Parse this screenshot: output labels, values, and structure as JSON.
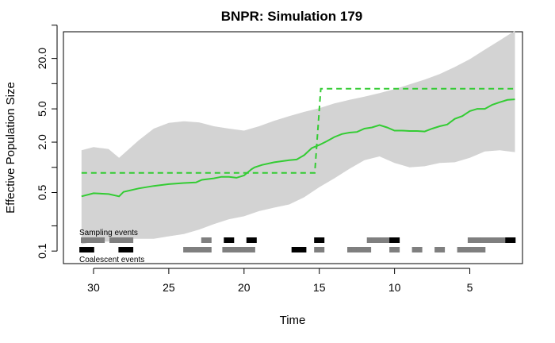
{
  "chart_data": {
    "type": "line",
    "title": "BNPR: Simulation 179",
    "xlabel": "Time",
    "ylabel": "Effective Population Size",
    "x_reversed": true,
    "xlim": [
      32,
      1.5
    ],
    "ylog": true,
    "ylim_log10": [
      -1.15,
      1.62
    ],
    "x_ticks": [
      30,
      25,
      20,
      15,
      10,
      5
    ],
    "x_tick_labels": [
      "30",
      "25",
      "20",
      "15",
      "10",
      "5"
    ],
    "y_ticks": [
      0.1,
      0.5,
      2.0,
      5.0,
      20.0
    ],
    "y_tick_labels": [
      "0.1",
      "0.5",
      "2.0",
      "5.0",
      "20.0"
    ],
    "y_minor_ticks": [
      0.2,
      1.0,
      10.0,
      50.0
    ],
    "colors": {
      "estimate": "#33cc33",
      "truth": "#33cc33",
      "band": "#d3d3d3",
      "sampling_event": "#7f7f7f",
      "coalescent_event": "#000000"
    },
    "series": [
      {
        "style": "solid",
        "role": "posterior-median",
        "x": [
          30.8,
          30.0,
          29.0,
          28.3,
          28.0,
          27.0,
          26.0,
          25.0,
          24.0,
          23.2,
          22.8,
          22.0,
          21.5,
          21.0,
          20.5,
          20.0,
          19.5,
          19.3,
          18.8,
          18.0,
          17.0,
          16.5,
          16.0,
          15.5,
          15.0,
          14.5,
          14.0,
          13.5,
          13.0,
          12.5,
          12.0,
          11.5,
          11.0,
          10.5,
          10.0,
          9.5,
          9.0,
          8.5,
          8.0,
          7.5,
          7.0,
          6.5,
          6.0,
          5.5,
          5.0,
          4.5,
          4.0,
          3.5,
          3.0,
          2.5,
          2.0
        ],
        "values": [
          0.45,
          0.49,
          0.48,
          0.45,
          0.51,
          0.56,
          0.6,
          0.63,
          0.65,
          0.66,
          0.71,
          0.74,
          0.77,
          0.77,
          0.75,
          0.8,
          0.95,
          1.0,
          1.07,
          1.15,
          1.22,
          1.24,
          1.4,
          1.7,
          1.85,
          2.05,
          2.3,
          2.5,
          2.6,
          2.65,
          2.9,
          3.0,
          3.2,
          3.0,
          2.75,
          2.75,
          2.72,
          2.72,
          2.68,
          2.9,
          3.1,
          3.25,
          3.8,
          4.1,
          4.7,
          5.0,
          5.0,
          5.6,
          6.0,
          6.4,
          6.5
        ]
      },
      {
        "style": "dashed",
        "role": "true-trajectory",
        "x": [
          30.8,
          15.3,
          14.9,
          2.0
        ],
        "values": [
          0.86,
          0.86,
          8.7,
          8.7
        ]
      }
    ],
    "band": {
      "role": "credible-interval",
      "x": [
        30.8,
        30.0,
        29.0,
        28.3,
        27.0,
        26.0,
        25.0,
        24.0,
        23.0,
        22.0,
        21.0,
        20.0,
        19.0,
        18.0,
        17.0,
        16.0,
        15.0,
        14.0,
        13.0,
        12.0,
        11.0,
        10.0,
        9.0,
        8.0,
        7.0,
        6.0,
        5.0,
        4.0,
        3.0,
        2.0
      ],
      "upper": [
        1.6,
        1.75,
        1.65,
        1.3,
        2.1,
        2.9,
        3.4,
        3.55,
        3.45,
        3.1,
        2.9,
        2.75,
        3.1,
        3.6,
        4.1,
        4.6,
        5.1,
        5.8,
        6.4,
        7.0,
        7.7,
        8.6,
        9.8,
        11.2,
        13.0,
        15.8,
        19.6,
        25.5,
        33.0,
        43.0
      ],
      "lower": [
        0.12,
        0.13,
        0.13,
        0.14,
        0.14,
        0.14,
        0.15,
        0.16,
        0.18,
        0.21,
        0.24,
        0.26,
        0.3,
        0.33,
        0.36,
        0.44,
        0.58,
        0.74,
        0.96,
        1.22,
        1.35,
        1.13,
        1.0,
        1.03,
        1.13,
        1.15,
        1.3,
        1.55,
        1.6,
        1.52
      ]
    },
    "sampling_events_label": "Sampling events",
    "coalescent_events_label": "Coalescent events",
    "sampling_events": {
      "gray": [
        30.5,
        30.2,
        29.9,
        29.6,
        28.6,
        28.3,
        28.0,
        27.7,
        22.5,
        11.5,
        11.2,
        10.9,
        10.6,
        4.8,
        4.5,
        4.2,
        3.9,
        3.6,
        3.3,
        3.0,
        2.7
      ],
      "black": [
        21.0,
        19.5,
        15.0,
        10.0,
        2.3
      ]
    },
    "coalescent_events": {
      "gray": [
        23.7,
        23.4,
        23.1,
        22.8,
        22.5,
        21.1,
        20.8,
        20.5,
        20.2,
        19.9,
        19.6,
        15.0,
        12.8,
        12.5,
        12.2,
        11.9,
        10.0,
        8.5,
        7.0,
        5.5,
        5.2,
        4.9,
        4.6,
        4.3
      ],
      "black": [
        30.6,
        30.3,
        28.0,
        27.7,
        16.5,
        16.2
      ]
    }
  }
}
